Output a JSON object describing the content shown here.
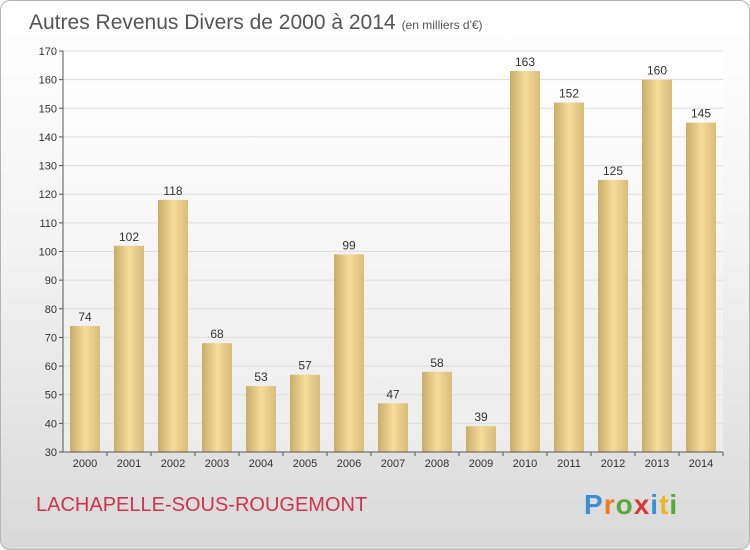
{
  "title": "Autres Revenus Divers de 2000 à 2014",
  "unit_note": "(en milliers d'€)",
  "location": "LACHAPELLE-SOUS-ROUGEMONT",
  "logo": {
    "text": "Proxiti",
    "letters": [
      {
        "ch": "P",
        "color": "#3a8fd6"
      },
      {
        "ch": "r",
        "color": "#f07a1e"
      },
      {
        "ch": "o",
        "color": "#5aa83c"
      },
      {
        "ch": "x",
        "color": "#d83a3a"
      },
      {
        "ch": "i",
        "color": "#3a8fd6"
      },
      {
        "ch": "t",
        "color": "#f0b41e"
      },
      {
        "ch": "i",
        "color": "#5aa83c"
      }
    ]
  },
  "chart_data": {
    "type": "bar",
    "title": "Autres Revenus Divers de 2000 à 2014",
    "subtitle": "(en milliers d'€)",
    "categories": [
      "2000",
      "2001",
      "2002",
      "2003",
      "2004",
      "2005",
      "2006",
      "2007",
      "2008",
      "2009",
      "2010",
      "2011",
      "2012",
      "2013",
      "2014"
    ],
    "values": [
      74,
      102,
      118,
      68,
      53,
      57,
      99,
      47,
      58,
      39,
      163,
      152,
      125,
      160,
      145
    ],
    "xlabel": "",
    "ylabel": "",
    "ylim": [
      30,
      170
    ],
    "yticks": [
      30,
      40,
      50,
      60,
      70,
      80,
      90,
      100,
      110,
      120,
      130,
      140,
      150,
      160,
      170
    ],
    "grid": true,
    "colors": {
      "bar_light": "#f5dc98",
      "bar_dark": "#c9ad6a",
      "grid": "#dddddd",
      "axis": "#555555"
    }
  }
}
